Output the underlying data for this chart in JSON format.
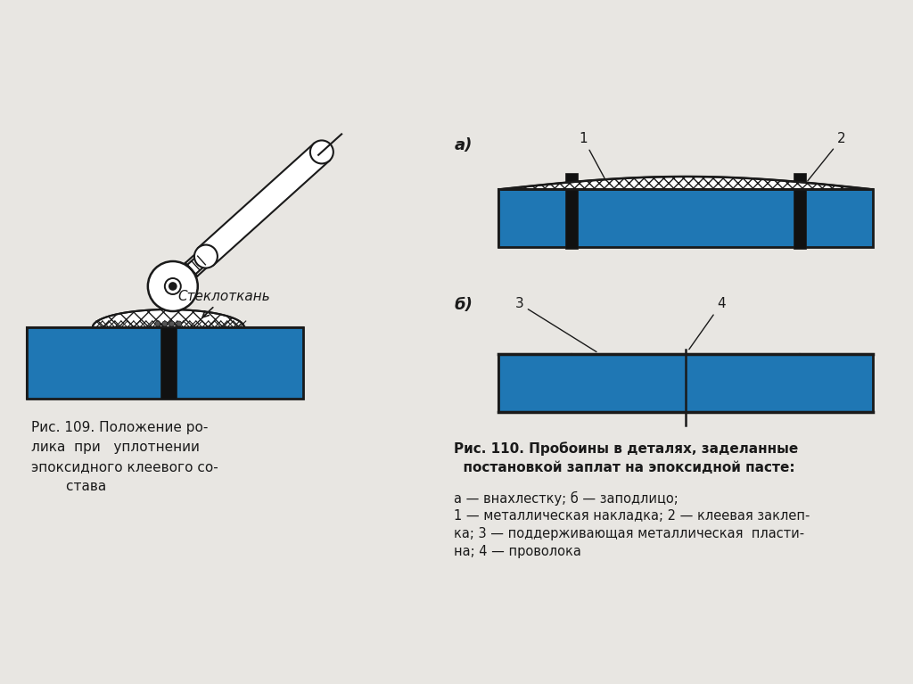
{
  "bg_color": "#e8e6e2",
  "line_color": "#1a1a1a",
  "fig109_caption_line1": "Рис. 109. Положение ро-",
  "fig109_caption_line2": "лика  при   уплотнении",
  "fig109_caption_line3": "эпоксидного клеевого со-",
  "fig109_caption_line4": "        става",
  "fig110_caption_line1": "Рис. 110. Пробоины в деталях, заделанные",
  "fig110_caption_line2": "  постановкой заплат на эпоксидной пасте:",
  "fig110_subcaption_line1": "а — внахлестку; б — заподлицо;",
  "fig110_subcaption_line2": "1 — металлическая накладка; 2 — клеевая заклеп-",
  "fig110_subcaption_line3": "ка; 3 — поддерживающая металлическая  пласти-",
  "fig110_subcaption_line4": "на; 4 — проволока",
  "label_a": "а)",
  "label_b": "б)",
  "label_1": "1",
  "label_2": "2",
  "label_3": "3",
  "label_4": "4",
  "steklotkan": "Стеклоткань"
}
